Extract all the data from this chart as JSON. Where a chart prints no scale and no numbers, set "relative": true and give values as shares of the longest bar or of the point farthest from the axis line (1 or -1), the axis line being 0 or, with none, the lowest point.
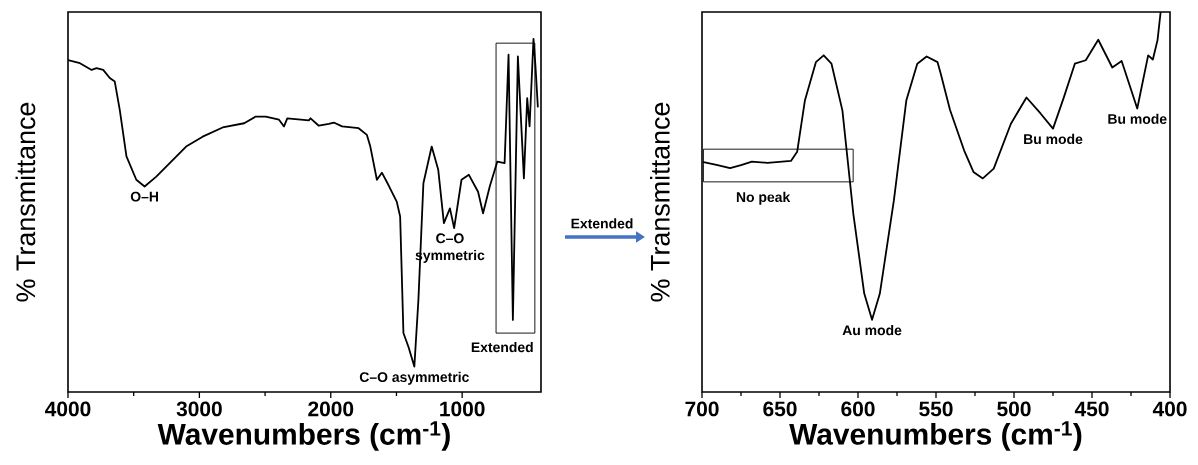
{
  "chart_data": [
    {
      "type": "line",
      "xlabel": "Wavenumbers (cm$^{-1}$)",
      "ylabel": "% Transmittance",
      "relative": true,
      "color": "#000000",
      "x": [
        4000,
        3909,
        3820,
        3783,
        3732,
        3682,
        3644,
        3606,
        3555,
        3480,
        3417,
        3328,
        3101,
        2975,
        2823,
        2659,
        2571,
        2495,
        2394,
        2356,
        2331,
        2167,
        2154,
        2091,
        2015,
        1977,
        1914,
        1788,
        1725,
        1699,
        1649,
        1611,
        1561,
        1498,
        1472,
        1447,
        1409,
        1364,
        1333,
        1295,
        1232,
        1182,
        1139,
        1093,
        1061,
        1005,
        949,
        879,
        841,
        790,
        733,
        677,
        647,
        614,
        576,
        530,
        505,
        487,
        457,
        442,
        424
      ],
      "values": [
        0.94,
        0.931,
        0.912,
        0.917,
        0.912,
        0.889,
        0.879,
        0.799,
        0.667,
        0.601,
        0.582,
        0.61,
        0.695,
        0.723,
        0.749,
        0.761,
        0.78,
        0.78,
        0.771,
        0.752,
        0.775,
        0.769,
        0.775,
        0.754,
        0.759,
        0.763,
        0.752,
        0.747,
        0.728,
        0.695,
        0.601,
        0.621,
        0.586,
        0.539,
        0.497,
        0.167,
        0.128,
        0.072,
        0.261,
        0.591,
        0.695,
        0.629,
        0.478,
        0.52,
        0.464,
        0.601,
        0.615,
        0.567,
        0.506,
        0.582,
        0.652,
        0.648,
        0.955,
        0.204,
        0.95,
        0.605,
        0.832,
        0.752,
        1,
        0.922,
        0.808
      ],
      "xlim": [
        4000,
        400
      ],
      "xticks": [
        4000,
        3000,
        2000,
        1000
      ],
      "annotations": [
        {
          "text": "O–H",
          "x": 3417,
          "y": 0.582
        },
        {
          "text": "C–O asymmetric",
          "x": 1364,
          "y": 0.072
        },
        {
          "text": "C–O symmetric",
          "x": 1093,
          "y": 0.464
        },
        "Extended",
        "Extended"
      ]
    },
    {
      "type": "line",
      "xlabel": "Wavenumbers (cm$^{-1}$)",
      "ylabel": "% Transmittance",
      "relative": true,
      "color": "#000000",
      "x": [
        699,
        690,
        682,
        675,
        668,
        658,
        643,
        639,
        634,
        627,
        622,
        617,
        610,
        603,
        596,
        591,
        586,
        577,
        569,
        562,
        556,
        549,
        547,
        541,
        532,
        526,
        520,
        513,
        502,
        492,
        483,
        475,
        468,
        461,
        454,
        446,
        437,
        431,
        421,
        414,
        411,
        408,
        406
      ],
      "values": [
        0.605,
        0.597,
        0.589,
        0.597,
        0.606,
        0.603,
        0.608,
        0.632,
        0.768,
        0.868,
        0.886,
        0.864,
        0.741,
        0.469,
        0.259,
        0.19,
        0.259,
        0.504,
        0.768,
        0.864,
        0.883,
        0.868,
        0.838,
        0.742,
        0.636,
        0.579,
        0.562,
        0.588,
        0.706,
        0.775,
        0.733,
        0.693,
        0.776,
        0.864,
        0.873,
        0.927,
        0.854,
        0.871,
        0.746,
        0.886,
        0.875,
        0.926,
        1
      ],
      "xlim": [
        700,
        400
      ],
      "xticks": [
        700,
        650,
        600,
        550,
        500,
        450,
        400
      ],
      "annotations": [
        "No peak",
        {
          "text": "Au mode",
          "x": 591,
          "y": 0.19
        },
        {
          "text": "Bu mode",
          "x": 475,
          "y": 0.693
        },
        {
          "text": "Bu mode",
          "x": 421,
          "y": 0.746
        }
      ]
    }
  ]
}
